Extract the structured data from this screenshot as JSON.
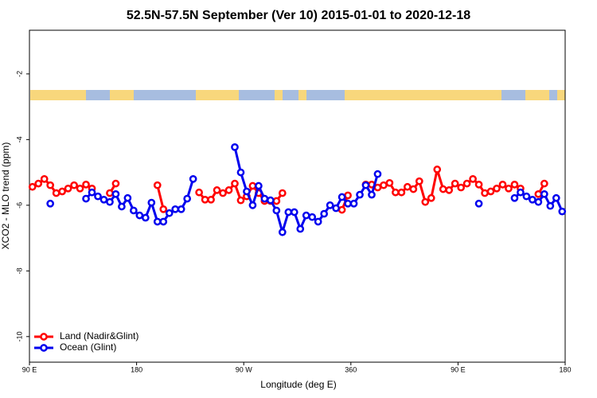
{
  "chart_data": {
    "type": "line",
    "title": "52.5N-57.5N September (Ver 10)   2015-01-01 to 2020-12-18",
    "x_label": "Longitude (deg E)",
    "y_label": "XCO2 - MLO trend (ppm)",
    "x": [
      92.5,
      97.5,
      102.5,
      107.5,
      112.5,
      117.5,
      122.5,
      127.5,
      132.5,
      137.5,
      142.5,
      147.5,
      152.5,
      157.5,
      162.5,
      167.5,
      172.5,
      177.5,
      182.5,
      187.5,
      192.5,
      197.5,
      202.5,
      207.5,
      212.5,
      217.5,
      222.5,
      227.5,
      232.5,
      237.5,
      242.5,
      247.5,
      252.5,
      257.5,
      262.5,
      267.5,
      272.5,
      277.5,
      282.5,
      287.5,
      292.5,
      297.5,
      302.5,
      307.5,
      312.5,
      317.5,
      322.5,
      327.5,
      332.5,
      337.5,
      342.5,
      347.5,
      352.5,
      357.5,
      362.5,
      367.5,
      372.5,
      377.5,
      382.5,
      387.5,
      392.5,
      397.5,
      402.5,
      407.5,
      412.5,
      417.5,
      422.5,
      427.5,
      432.5,
      437.5,
      442.5,
      447.5,
      452.5,
      457.5,
      462.5,
      467.5,
      472.5,
      477.5,
      482.5,
      487.5,
      492.5,
      497.5,
      502.5,
      507.5,
      512.5,
      517.5,
      522.5,
      527.5,
      532.5,
      537.5
    ],
    "series": [
      {
        "name": "Land (Nadir&Glint)",
        "color": "#ff0000",
        "values": [
          -5.44,
          -5.34,
          -5.2,
          -5.39,
          -5.63,
          -5.58,
          -5.49,
          -5.39,
          -5.49,
          -5.37,
          -5.49,
          null,
          null,
          -5.63,
          -5.34,
          null,
          null,
          null,
          null,
          null,
          null,
          -5.39,
          -6.12,
          null,
          null,
          null,
          null,
          null,
          -5.61,
          -5.83,
          -5.83,
          -5.54,
          -5.63,
          -5.54,
          -5.34,
          -5.85,
          -5.73,
          -5.41,
          -5.63,
          -5.87,
          -5.87,
          -5.87,
          -5.63,
          null,
          null,
          null,
          null,
          null,
          null,
          null,
          null,
          null,
          -6.14,
          -5.7,
          null,
          null,
          -5.37,
          -5.37,
          -5.46,
          -5.39,
          -5.32,
          -5.61,
          -5.61,
          -5.44,
          -5.51,
          -5.27,
          -5.9,
          -5.78,
          -4.91,
          -5.51,
          -5.54,
          -5.34,
          -5.46,
          -5.34,
          -5.2,
          -5.37,
          -5.63,
          -5.58,
          -5.49,
          -5.37,
          -5.49,
          -5.37,
          -5.49,
          null,
          null,
          -5.66,
          -5.34,
          null,
          null,
          null
        ]
      },
      {
        "name": "Ocean (Glint)",
        "color": "#0000ee",
        "values": [
          null,
          null,
          null,
          -5.95,
          null,
          null,
          null,
          null,
          null,
          -5.8,
          -5.61,
          -5.73,
          -5.83,
          -5.9,
          -5.66,
          -6.04,
          -5.78,
          -6.16,
          -6.31,
          -6.38,
          -5.92,
          -6.5,
          -6.5,
          -6.24,
          -6.12,
          -6.12,
          -5.8,
          -5.2,
          null,
          null,
          null,
          null,
          null,
          null,
          -4.23,
          -5.0,
          -5.58,
          -6.0,
          -5.41,
          -5.8,
          -5.85,
          -6.16,
          -6.82,
          -6.21,
          -6.21,
          -6.72,
          -6.31,
          -6.36,
          -6.5,
          -6.26,
          -6.0,
          -6.09,
          -5.75,
          -5.95,
          -5.95,
          -5.68,
          -5.39,
          -5.68,
          -5.05,
          null,
          null,
          null,
          null,
          null,
          null,
          null,
          null,
          null,
          null,
          null,
          null,
          null,
          null,
          null,
          null,
          -5.95,
          null,
          null,
          null,
          null,
          null,
          -5.78,
          -5.61,
          -5.73,
          -5.83,
          -5.9,
          -5.66,
          -6.02,
          -5.78,
          -6.19
        ]
      }
    ],
    "xlim": [
      90,
      540
    ],
    "xticks": [
      {
        "value": 90,
        "label": "90 E"
      },
      180,
      {
        "value": 270,
        "label": "90 W"
      },
      360,
      {
        "value": 450,
        "label": "90 E"
      },
      {
        "value": 540,
        "label": "180"
      }
    ],
    "ylim": [
      -10.78,
      -0.67
    ],
    "yticks": [
      -10,
      -8,
      -6,
      -4,
      -2
    ],
    "legend": "bottom-left"
  }
}
